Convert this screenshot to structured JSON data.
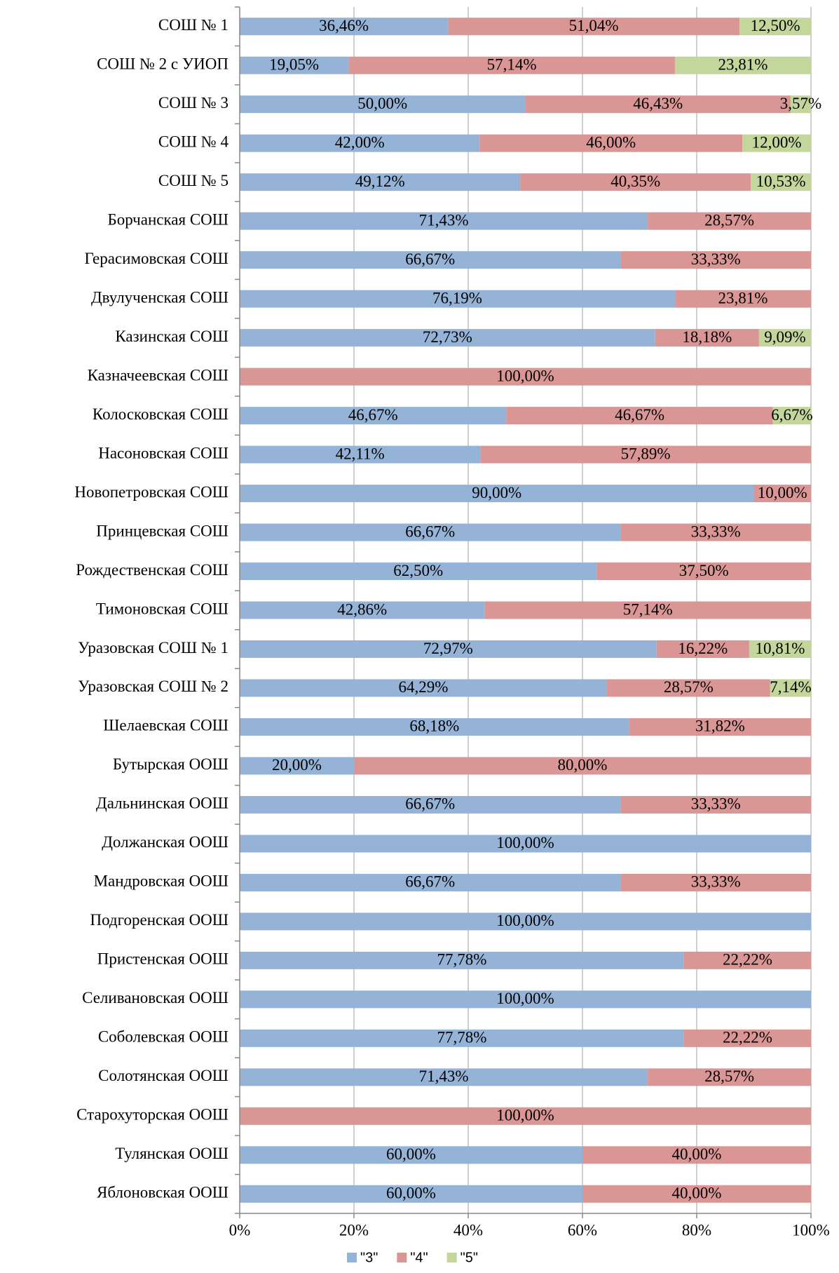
{
  "chart_data": {
    "type": "stacked_bar_horizontal",
    "categories": [
      "СОШ № 1",
      "СОШ № 2 с УИОП",
      "СОШ № 3",
      "СОШ № 4",
      "СОШ № 5",
      "Борчанская СОШ",
      "Герасимовская СОШ",
      "Двулученская СОШ",
      "Казинская СОШ",
      "Казначеевская СОШ",
      "Колосковская СОШ",
      "Насоновская СОШ",
      "Новопетровская СОШ",
      "Принцевская СОШ",
      "Рождественская СОШ",
      "Тимоновская СОШ",
      "Уразовская СОШ № 1",
      "Уразовская СОШ № 2",
      "Шелаевская СОШ",
      "Бутырская ООШ",
      "Дальнинская ООШ",
      "Должанская ООШ",
      "Мандровская ООШ",
      "Подгоренская ООШ",
      "Пристенская ООШ",
      "Селивановская ООШ",
      "Соболевская ООШ",
      "Солотянская ООШ",
      "Старохуторская ООШ",
      "Тулянская ООШ",
      "Яблоновская ООШ"
    ],
    "series": [
      {
        "name": "\"3\"",
        "color": "#95b3d7",
        "values": [
          36.46,
          19.05,
          50.0,
          42.0,
          49.12,
          71.43,
          66.67,
          76.19,
          72.73,
          null,
          46.67,
          42.11,
          90.0,
          66.67,
          62.5,
          42.86,
          72.97,
          64.29,
          68.18,
          20.0,
          66.67,
          100,
          66.67,
          100,
          77.78,
          100,
          77.78,
          71.43,
          null,
          60.0,
          60.0
        ],
        "value_labels": [
          "36,46%",
          "19,05%",
          "50,00%",
          "42,00%",
          "49,12%",
          "71,43%",
          "66,67%",
          "76,19%",
          "72,73%",
          null,
          "46,67%",
          "42,11%",
          "90,00%",
          "66,67%",
          "62,50%",
          "42,86%",
          "72,97%",
          "64,29%",
          "68,18%",
          "20,00%",
          "66,67%",
          "100,00%",
          "66,67%",
          "100,00%",
          "77,78%",
          "100,00%",
          "77,78%",
          "71,43%",
          null,
          "60,00%",
          "60,00%"
        ]
      },
      {
        "name": "\"4\"",
        "color": "#d99694",
        "values": [
          51.04,
          57.14,
          46.43,
          46.0,
          40.35,
          28.57,
          33.33,
          23.81,
          18.18,
          100,
          46.67,
          57.89,
          10.0,
          33.33,
          37.5,
          57.14,
          16.22,
          28.57,
          31.82,
          80.0,
          33.33,
          null,
          33.33,
          null,
          22.22,
          null,
          22.22,
          28.57,
          100,
          40.0,
          40.0
        ],
        "value_labels": [
          "51,04%",
          "57,14%",
          "46,43%",
          "46,00%",
          "40,35%",
          "28,57%",
          "33,33%",
          "23,81%",
          "18,18%",
          "100,00%",
          "46,67%",
          "57,89%",
          "10,00%",
          "33,33%",
          "37,50%",
          "57,14%",
          "16,22%",
          "28,57%",
          "31,82%",
          "80,00%",
          "33,33%",
          null,
          "33,33%",
          null,
          "22,22%",
          null,
          "22,22%",
          "28,57%",
          "100,00%",
          "40,00%",
          "40,00%"
        ]
      },
      {
        "name": "\"5\"",
        "color": "#c3d69b",
        "values": [
          12.5,
          23.81,
          3.57,
          12.0,
          10.53,
          null,
          null,
          null,
          9.09,
          null,
          6.67,
          null,
          null,
          null,
          null,
          null,
          10.81,
          7.14,
          null,
          null,
          null,
          null,
          null,
          null,
          null,
          null,
          null,
          null,
          null,
          null,
          null
        ],
        "value_labels": [
          "12,50%",
          "23,81%",
          "3,57%",
          "12,00%",
          "10,53%",
          null,
          null,
          null,
          "9,09%",
          null,
          "6,67%",
          null,
          null,
          null,
          null,
          null,
          "10,81%",
          "7,14%",
          null,
          null,
          null,
          null,
          null,
          null,
          null,
          null,
          null,
          null,
          null,
          null,
          null
        ]
      }
    ],
    "xlim": [
      0,
      100
    ],
    "xticks": [
      {
        "value": 0,
        "label": "0%"
      },
      {
        "value": 20,
        "label": "20%"
      },
      {
        "value": 40,
        "label": "40%"
      },
      {
        "value": 60,
        "label": "60%"
      },
      {
        "value": 80,
        "label": "80%"
      },
      {
        "value": 100,
        "label": "100%"
      }
    ],
    "grid": true,
    "legend": "bottom"
  }
}
